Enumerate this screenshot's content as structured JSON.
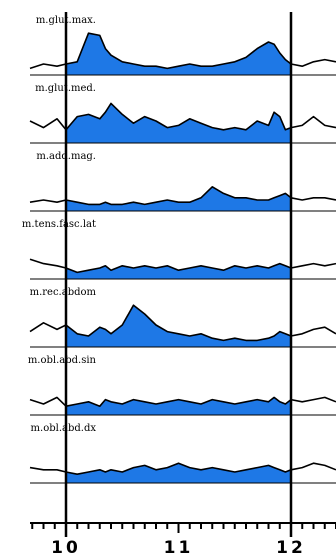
{
  "chart_data": {
    "type": "area",
    "title": "",
    "xlabel": "",
    "ylabel": "",
    "x_ticks": [
      "10",
      "11",
      "12"
    ],
    "shaded_interval": {
      "from": 10,
      "to": 12
    },
    "fill_color": "#1e78e6",
    "trace_color": "#000000",
    "grid": false,
    "legend": "none",
    "sample_x": [
      9.68,
      9.8,
      9.92,
      10.0,
      10.1,
      10.2,
      10.3,
      10.35,
      10.4,
      10.5,
      10.6,
      10.7,
      10.8,
      10.9,
      11.0,
      11.1,
      11.2,
      11.3,
      11.4,
      11.5,
      11.6,
      11.7,
      11.8,
      11.85,
      11.9,
      11.95,
      12.0,
      12.1,
      12.2,
      12.3,
      12.4
    ],
    "series": [
      {
        "label": "m.glut.max.",
        "values": [
          0.15,
          0.25,
          0.2,
          0.25,
          0.3,
          0.95,
          0.9,
          0.6,
          0.45,
          0.3,
          0.25,
          0.2,
          0.2,
          0.15,
          0.2,
          0.25,
          0.2,
          0.2,
          0.25,
          0.3,
          0.4,
          0.6,
          0.75,
          0.7,
          0.5,
          0.35,
          0.25,
          0.2,
          0.3,
          0.35,
          0.3
        ]
      },
      {
        "label": "m.glut.med.",
        "values": [
          0.5,
          0.35,
          0.55,
          0.3,
          0.6,
          0.65,
          0.55,
          0.7,
          0.9,
          0.65,
          0.45,
          0.6,
          0.5,
          0.35,
          0.4,
          0.55,
          0.45,
          0.35,
          0.3,
          0.35,
          0.3,
          0.5,
          0.4,
          0.7,
          0.6,
          0.3,
          0.35,
          0.4,
          0.6,
          0.4,
          0.35
        ]
      },
      {
        "label": "m.add.mag.",
        "values": [
          0.2,
          0.25,
          0.2,
          0.25,
          0.2,
          0.15,
          0.15,
          0.2,
          0.15,
          0.15,
          0.2,
          0.15,
          0.2,
          0.25,
          0.2,
          0.2,
          0.3,
          0.55,
          0.4,
          0.3,
          0.3,
          0.25,
          0.25,
          0.3,
          0.35,
          0.4,
          0.3,
          0.25,
          0.3,
          0.3,
          0.25
        ]
      },
      {
        "label": "m.tens.fasc.lat",
        "values": [
          0.45,
          0.35,
          0.3,
          0.25,
          0.15,
          0.2,
          0.25,
          0.3,
          0.2,
          0.3,
          0.25,
          0.3,
          0.25,
          0.3,
          0.2,
          0.25,
          0.3,
          0.25,
          0.2,
          0.3,
          0.25,
          0.3,
          0.25,
          0.3,
          0.35,
          0.3,
          0.25,
          0.3,
          0.35,
          0.3,
          0.35
        ]
      },
      {
        "label": "m.rec.abdom",
        "values": [
          0.35,
          0.55,
          0.4,
          0.5,
          0.3,
          0.25,
          0.45,
          0.4,
          0.3,
          0.5,
          0.95,
          0.75,
          0.5,
          0.35,
          0.3,
          0.25,
          0.3,
          0.2,
          0.15,
          0.2,
          0.15,
          0.15,
          0.2,
          0.25,
          0.35,
          0.3,
          0.25,
          0.3,
          0.4,
          0.45,
          0.3
        ]
      },
      {
        "label": "m.obl.abd.sin",
        "values": [
          0.35,
          0.25,
          0.4,
          0.2,
          0.25,
          0.3,
          0.2,
          0.35,
          0.3,
          0.25,
          0.35,
          0.3,
          0.25,
          0.3,
          0.35,
          0.3,
          0.25,
          0.35,
          0.3,
          0.25,
          0.3,
          0.35,
          0.3,
          0.4,
          0.3,
          0.25,
          0.35,
          0.3,
          0.35,
          0.4,
          0.3
        ]
      },
      {
        "label": "m.obl.abd.dx",
        "values": [
          0.35,
          0.3,
          0.3,
          0.25,
          0.2,
          0.25,
          0.3,
          0.25,
          0.3,
          0.25,
          0.35,
          0.4,
          0.3,
          0.35,
          0.45,
          0.35,
          0.3,
          0.35,
          0.3,
          0.25,
          0.3,
          0.35,
          0.4,
          0.35,
          0.3,
          0.25,
          0.3,
          0.35,
          0.45,
          0.4,
          0.3
        ]
      }
    ]
  }
}
